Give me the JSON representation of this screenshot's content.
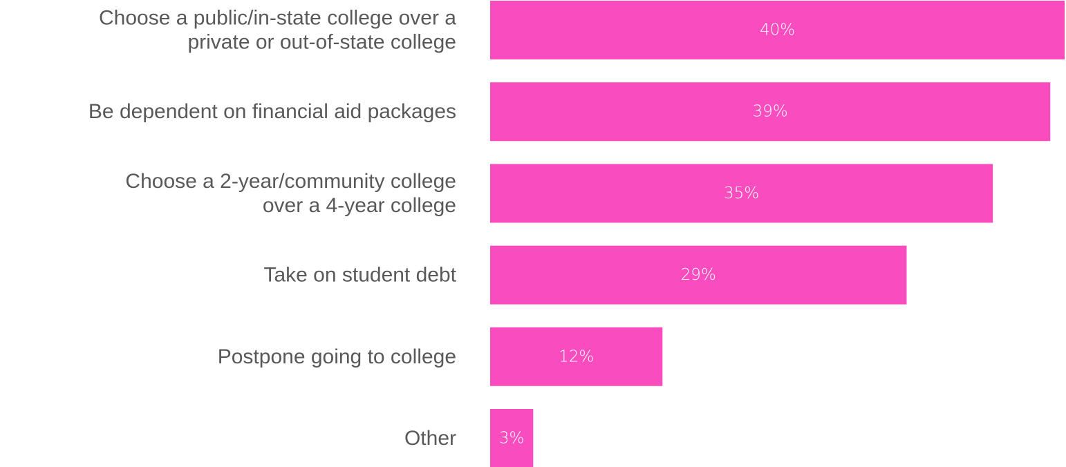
{
  "chart_data": {
    "type": "bar",
    "orientation": "horizontal",
    "categories": [
      [
        "Choose a public/in-state college over a",
        "private or out-of-state college"
      ],
      [
        "Be dependent on financial aid packages"
      ],
      [
        "Choose a 2-year/community college",
        "over a 4-year college"
      ],
      [
        "Take on student debt"
      ],
      [
        "Postpone going to college"
      ],
      [
        "Other"
      ]
    ],
    "values": [
      40,
      39,
      35,
      29,
      12,
      3
    ],
    "value_labels": [
      "40%",
      "39%",
      "35%",
      "29%",
      "12%",
      "3%"
    ],
    "xlim": [
      0,
      40
    ],
    "grid": false,
    "legend": "none",
    "colors": {
      "bar": "#f94dbf",
      "value_label": "#ffffff",
      "category_label": "#595959"
    }
  }
}
